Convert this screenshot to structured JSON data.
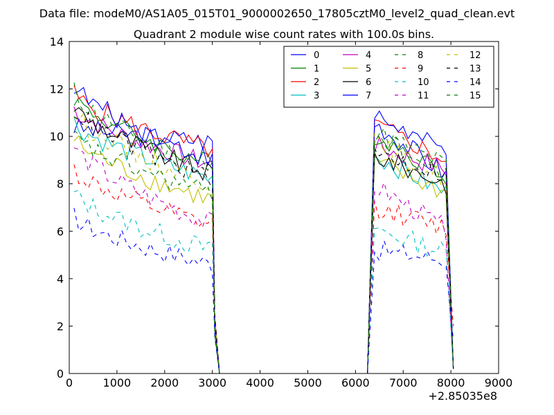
{
  "chart_data": {
    "type": "line",
    "suptitle": "Data file: modeM0/AS1A05_015T01_9000002650_17805cztM0_level2_quad_clean.evt",
    "title": "Quadrant 2 module wise count rates with 100.0s bins.",
    "xlabel": "",
    "ylabel": "",
    "x_offset_label": "+2.85035e8",
    "xlim": [
      0,
      9000
    ],
    "ylim": [
      0,
      14
    ],
    "xticks": [
      0,
      1000,
      2000,
      3000,
      4000,
      5000,
      6000,
      7000,
      8000,
      9000
    ],
    "yticks": [
      0,
      2,
      4,
      6,
      8,
      10,
      12,
      14
    ],
    "legend_position": "top-right",
    "legend_columns": 4,
    "segments": [
      {
        "x_start": 100,
        "x_end": 3000
      },
      {
        "x_start": 6400,
        "x_end": 7900
      }
    ],
    "gap_points": [
      3150,
      4000,
      5000,
      6000,
      6250
    ],
    "edge_drop_x": [
      3050,
      8050
    ],
    "series": [
      {
        "name": "0",
        "color": "#0000ff",
        "dash": false,
        "seg1": [
          10.4,
          9.8
        ],
        "seg2": [
          10.6,
          8.4
        ],
        "drop": 0.2
      },
      {
        "name": "1",
        "color": "#007f00",
        "dash": false,
        "seg1": [
          11.7,
          8.8
        ],
        "seg2": [
          10.1,
          8.4
        ],
        "drop": 0.3
      },
      {
        "name": "2",
        "color": "#ff0000",
        "dash": false,
        "seg1": [
          11.8,
          9.4
        ],
        "seg2": [
          10.5,
          9.0
        ],
        "drop": 0.2
      },
      {
        "name": "3",
        "color": "#00bfbf",
        "dash": false,
        "seg1": [
          10.6,
          8.2
        ],
        "seg2": [
          9.2,
          7.6
        ],
        "drop": 0.2
      },
      {
        "name": "4",
        "color": "#bf00bf",
        "dash": false,
        "seg1": [
          11.2,
          8.8
        ],
        "seg2": [
          9.6,
          8.6
        ],
        "drop": 0.2
      },
      {
        "name": "5",
        "color": "#bfbf00",
        "dash": false,
        "seg1": [
          9.9,
          7.3
        ],
        "seg2": [
          8.9,
          7.6
        ],
        "drop": 0.2
      },
      {
        "name": "6",
        "color": "#000000",
        "dash": false,
        "seg1": [
          11.3,
          8.4
        ],
        "seg2": [
          9.2,
          8.0
        ],
        "drop": 0.2
      },
      {
        "name": "7",
        "color": "#0000ff",
        "dash": false,
        "seg1": [
          12.2,
          9.0
        ],
        "seg2": [
          10.9,
          9.3
        ],
        "drop": 0.2
      },
      {
        "name": "8",
        "color": "#007f00",
        "dash": true,
        "seg1": [
          11.9,
          8.6
        ],
        "seg2": [
          10.2,
          8.8
        ],
        "drop": 0.3
      },
      {
        "name": "9",
        "color": "#ff0000",
        "dash": true,
        "seg1": [
          8.6,
          6.2
        ],
        "seg2": [
          7.0,
          6.1
        ],
        "drop": 2.0
      },
      {
        "name": "10",
        "color": "#00bfbf",
        "dash": true,
        "seg1": [
          7.6,
          5.2
        ],
        "seg2": [
          6.1,
          5.1
        ],
        "drop": 0.2
      },
      {
        "name": "11",
        "color": "#bf00bf",
        "dash": true,
        "seg1": [
          9.6,
          6.3
        ],
        "seg2": [
          7.9,
          6.1
        ],
        "drop": 0.2
      },
      {
        "name": "12",
        "color": "#bfbf00",
        "dash": true,
        "seg1": [
          11.0,
          8.0
        ],
        "seg2": [
          9.7,
          8.2
        ],
        "drop": 0.2
      },
      {
        "name": "13",
        "color": "#000000",
        "dash": true,
        "seg1": [
          11.2,
          8.2
        ],
        "seg2": [
          9.3,
          8.4
        ],
        "drop": 0.2
      },
      {
        "name": "14",
        "color": "#0000ff",
        "dash": true,
        "seg1": [
          6.6,
          4.6
        ],
        "seg2": [
          5.2,
          4.8
        ],
        "drop": 1.4
      },
      {
        "name": "15",
        "color": "#007f00",
        "dash": true,
        "seg1": [
          10.0,
          7.6
        ],
        "seg2": [
          10.1,
          8.2
        ],
        "drop": 0.3
      }
    ]
  }
}
